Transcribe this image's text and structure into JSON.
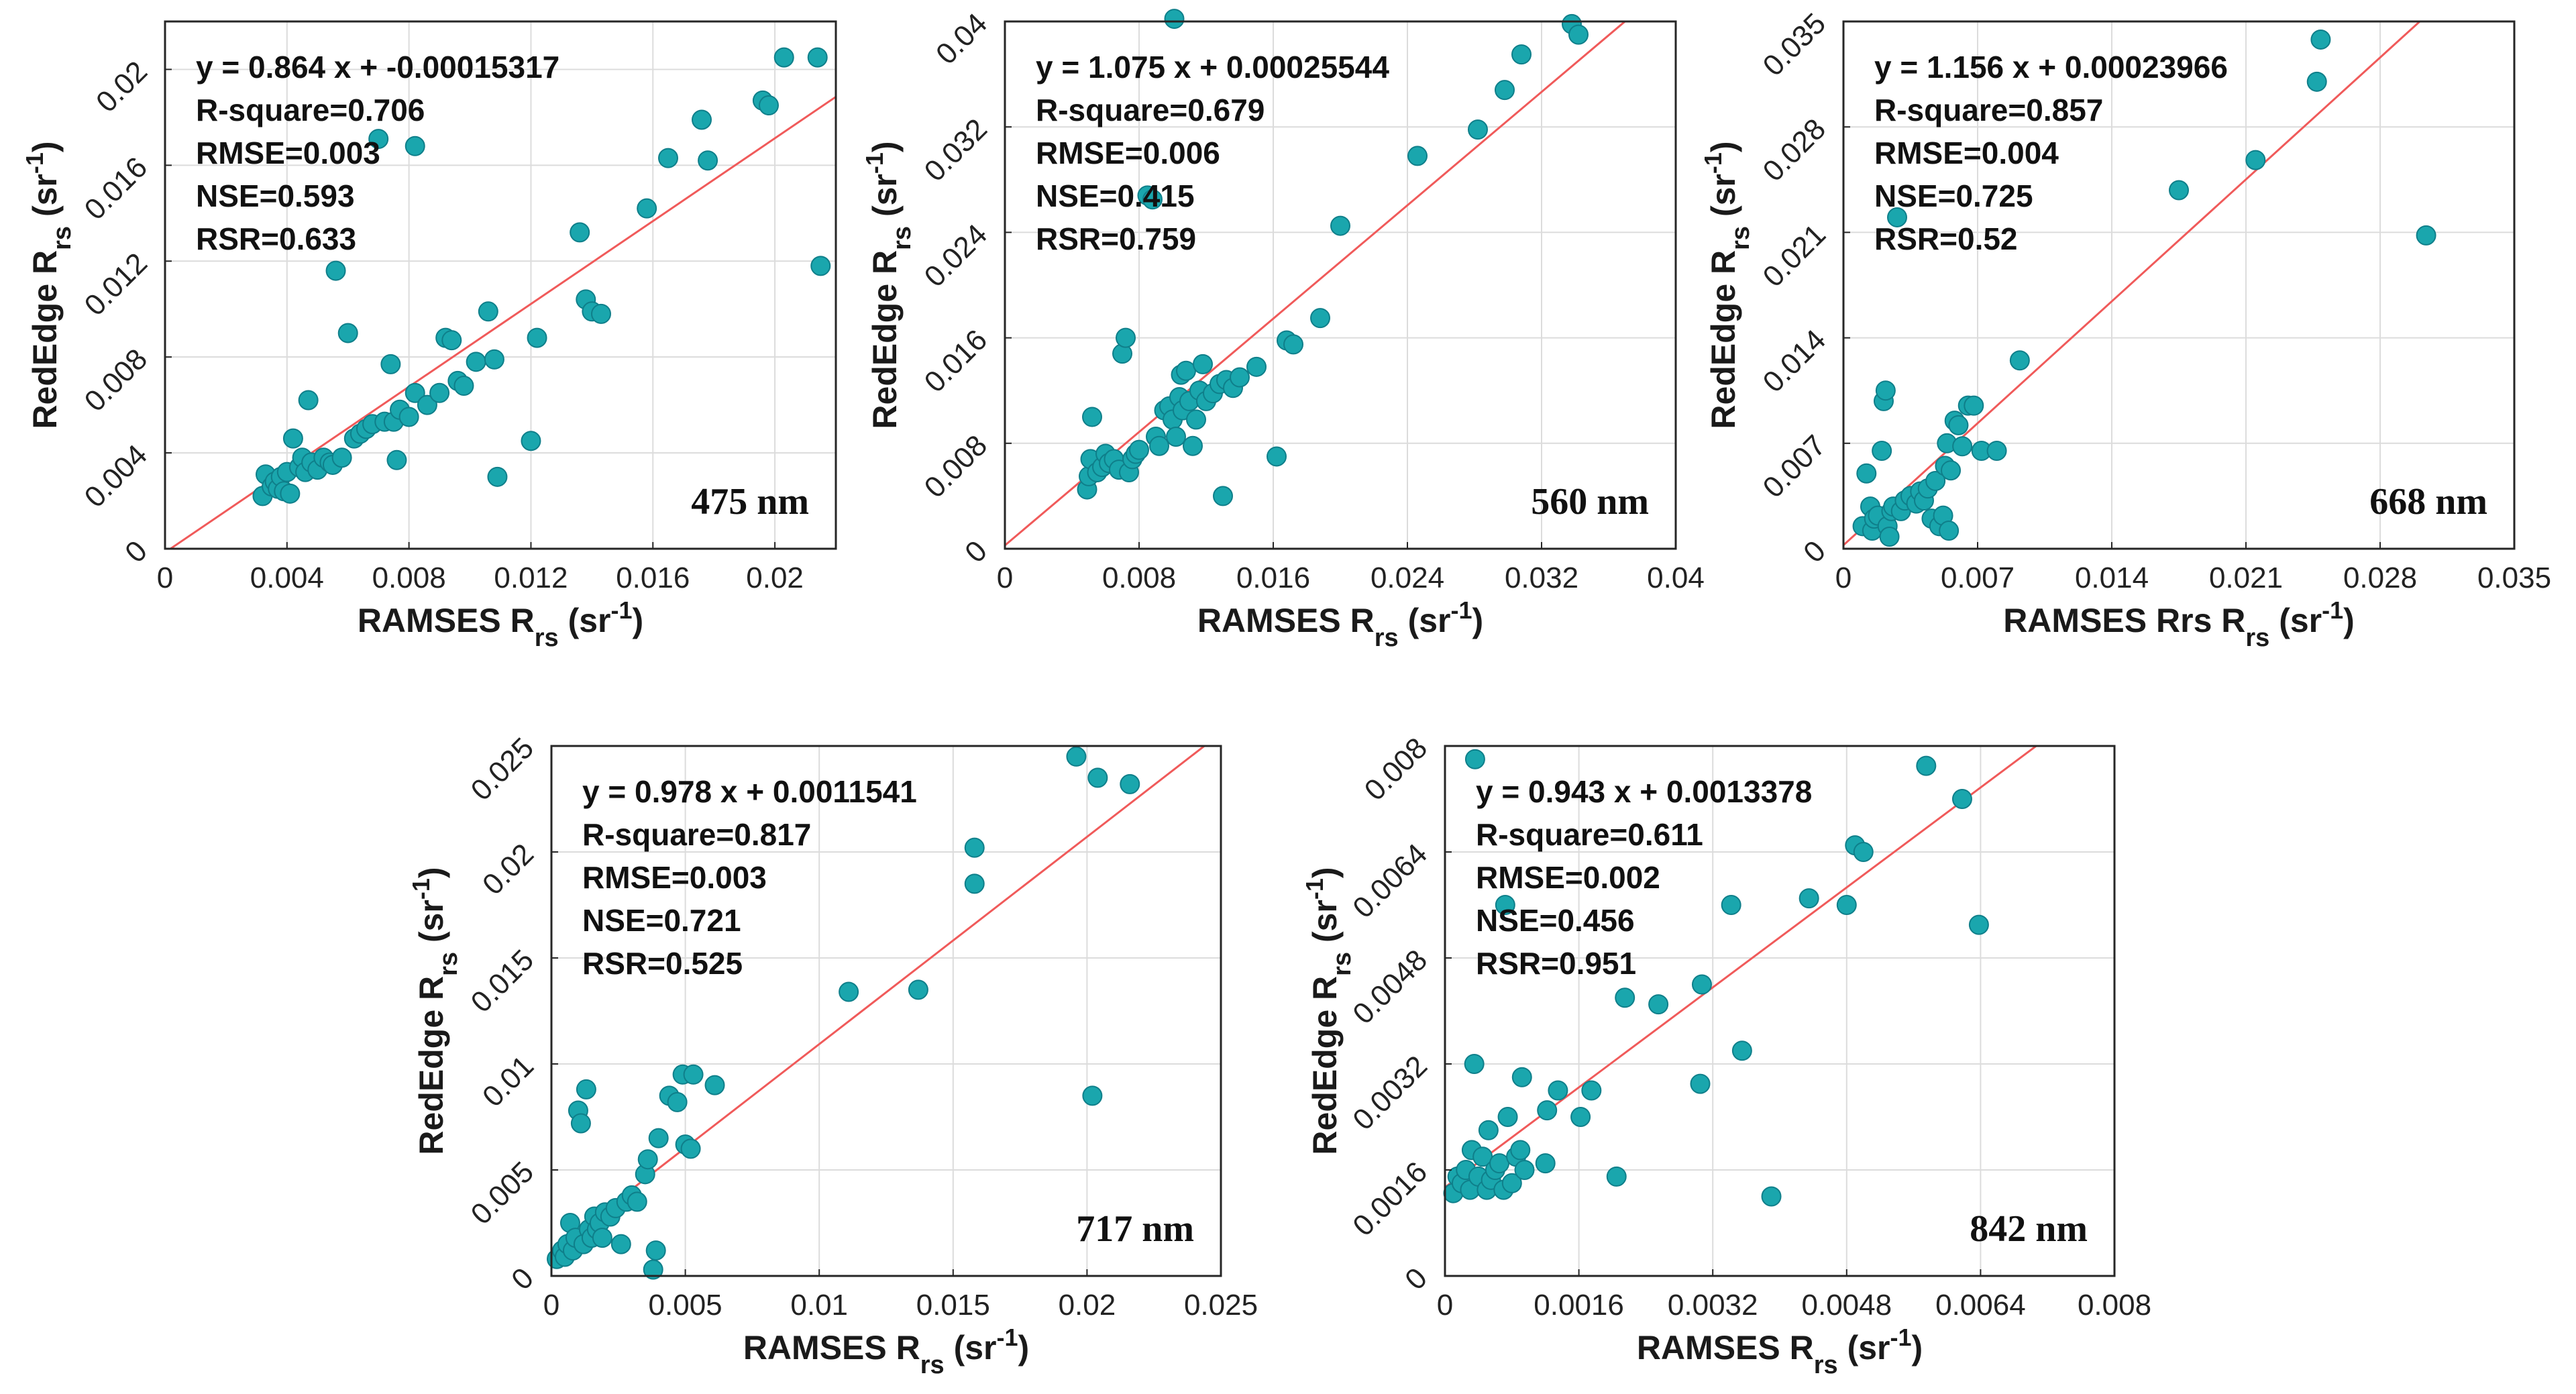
{
  "chart_data": [
    {
      "type": "scatter",
      "id": "475",
      "wavelength_label": "475 nm",
      "xlabel": "RAMSES R",
      "xlabel_sub": "rs",
      "ylabel": "RedEdge R",
      "ylabel_sub": "rs",
      "unit_open": " (sr",
      "unit_exp": "-1",
      "unit_close": ")",
      "xlim": [
        0,
        0.022
      ],
      "ylim": [
        0,
        0.022
      ],
      "xticks": [
        0,
        0.004,
        0.008,
        0.012,
        0.016,
        0.02
      ],
      "xtick_labels": [
        "0",
        "0.004",
        "0.008",
        "0.012",
        "0.016",
        "0.02"
      ],
      "yticks": [
        0,
        0.004,
        0.008,
        0.012,
        0.016,
        0.02
      ],
      "ytick_labels": [
        "0",
        "0.004",
        "0.008",
        "0.012",
        "0.016",
        "0.02"
      ],
      "grid": true,
      "fit": {
        "slope": 0.864,
        "intercept": -0.00015317
      },
      "stats": [
        "y = 0.864 x + -0.00015317",
        "R-square=0.706",
        "RMSE=0.003",
        "NSE=0.593",
        "RSR=0.633"
      ],
      "points": [
        [
          0.0032,
          0.0022
        ],
        [
          0.0033,
          0.0031
        ],
        [
          0.0035,
          0.0026
        ],
        [
          0.0036,
          0.0028
        ],
        [
          0.0037,
          0.0025
        ],
        [
          0.0038,
          0.003
        ],
        [
          0.0039,
          0.0024
        ],
        [
          0.004,
          0.0032
        ],
        [
          0.0041,
          0.0023
        ],
        [
          0.0042,
          0.0046
        ],
        [
          0.0044,
          0.0034
        ],
        [
          0.0045,
          0.0038
        ],
        [
          0.0046,
          0.0032
        ],
        [
          0.0047,
          0.0062
        ],
        [
          0.0048,
          0.0036
        ],
        [
          0.005,
          0.0033
        ],
        [
          0.0052,
          0.0038
        ],
        [
          0.0054,
          0.0036
        ],
        [
          0.0055,
          0.0035
        ],
        [
          0.0056,
          0.0116
        ],
        [
          0.0058,
          0.0038
        ],
        [
          0.006,
          0.009
        ],
        [
          0.0062,
          0.0046
        ],
        [
          0.0064,
          0.0048
        ],
        [
          0.0066,
          0.005
        ],
        [
          0.0068,
          0.0052
        ],
        [
          0.007,
          0.0171
        ],
        [
          0.0072,
          0.0053
        ],
        [
          0.0074,
          0.0077
        ],
        [
          0.0075,
          0.0053
        ],
        [
          0.0076,
          0.0037
        ],
        [
          0.0077,
          0.0058
        ],
        [
          0.008,
          0.0055
        ],
        [
          0.0082,
          0.0168
        ],
        [
          0.0082,
          0.0065
        ],
        [
          0.0086,
          0.006
        ],
        [
          0.009,
          0.0065
        ],
        [
          0.0092,
          0.0088
        ],
        [
          0.0094,
          0.0087
        ],
        [
          0.0096,
          0.007
        ],
        [
          0.0098,
          0.0068
        ],
        [
          0.0102,
          0.0078
        ],
        [
          0.0106,
          0.0099
        ],
        [
          0.0108,
          0.0079
        ],
        [
          0.0109,
          0.003
        ],
        [
          0.012,
          0.0045
        ],
        [
          0.0122,
          0.0088
        ],
        [
          0.0136,
          0.0132
        ],
        [
          0.0138,
          0.0104
        ],
        [
          0.014,
          0.0099
        ],
        [
          0.0143,
          0.0098
        ],
        [
          0.0158,
          0.0142
        ],
        [
          0.0165,
          0.0163
        ],
        [
          0.0176,
          0.0179
        ],
        [
          0.0178,
          0.0162
        ],
        [
          0.0196,
          0.0187
        ],
        [
          0.0198,
          0.0185
        ],
        [
          0.0203,
          0.0205
        ],
        [
          0.0214,
          0.0205
        ],
        [
          0.0215,
          0.0118
        ]
      ]
    },
    {
      "type": "scatter",
      "id": "560",
      "wavelength_label": "560 nm",
      "xlabel": "RAMSES R",
      "xlabel_sub": "rs",
      "ylabel": "RedEdge R",
      "ylabel_sub": "rs",
      "unit_open": " (sr",
      "unit_exp": "-1",
      "unit_close": ")",
      "xlim": [
        0,
        0.04
      ],
      "ylim": [
        0,
        0.04
      ],
      "xticks": [
        0,
        0.008,
        0.016,
        0.024,
        0.032,
        0.04
      ],
      "xtick_labels": [
        "0",
        "0.008",
        "0.016",
        "0.024",
        "0.032",
        "0.04"
      ],
      "yticks": [
        0,
        0.008,
        0.016,
        0.024,
        0.032,
        0.04
      ],
      "ytick_labels": [
        "0",
        "0.008",
        "0.016",
        "0.024",
        "0.032",
        "0.04"
      ],
      "grid": true,
      "fit": {
        "slope": 1.075,
        "intercept": 0.00025544
      },
      "stats": [
        "y = 1.075 x + 0.00025544",
        "R-square=0.679",
        "RMSE=0.006",
        "NSE=0.415",
        "RSR=0.759"
      ],
      "points": [
        [
          0.0049,
          0.0045
        ],
        [
          0.005,
          0.0055
        ],
        [
          0.0051,
          0.0068
        ],
        [
          0.0052,
          0.01
        ],
        [
          0.0055,
          0.0058
        ],
        [
          0.0058,
          0.0062
        ],
        [
          0.006,
          0.0072
        ],
        [
          0.0062,
          0.0065
        ],
        [
          0.0065,
          0.0068
        ],
        [
          0.0068,
          0.006
        ],
        [
          0.007,
          0.0148
        ],
        [
          0.0072,
          0.016
        ],
        [
          0.0074,
          0.0058
        ],
        [
          0.0076,
          0.0068
        ],
        [
          0.0078,
          0.0072
        ],
        [
          0.008,
          0.0075
        ],
        [
          0.0085,
          0.0268
        ],
        [
          0.0088,
          0.0265
        ],
        [
          0.009,
          0.0085
        ],
        [
          0.0092,
          0.0078
        ],
        [
          0.0095,
          0.0105
        ],
        [
          0.0098,
          0.0108
        ],
        [
          0.01,
          0.0098
        ],
        [
          0.0101,
          0.0402
        ],
        [
          0.0102,
          0.0085
        ],
        [
          0.0104,
          0.0115
        ],
        [
          0.0105,
          0.0132
        ],
        [
          0.0106,
          0.0105
        ],
        [
          0.0108,
          0.0135
        ],
        [
          0.011,
          0.0112
        ],
        [
          0.0112,
          0.0078
        ],
        [
          0.0114,
          0.0098
        ],
        [
          0.0116,
          0.012
        ],
        [
          0.0118,
          0.014
        ],
        [
          0.012,
          0.0112
        ],
        [
          0.0124,
          0.0118
        ],
        [
          0.0128,
          0.0125
        ],
        [
          0.013,
          0.004
        ],
        [
          0.0132,
          0.0128
        ],
        [
          0.0136,
          0.0122
        ],
        [
          0.014,
          0.013
        ],
        [
          0.015,
          0.0138
        ],
        [
          0.0162,
          0.007
        ],
        [
          0.0168,
          0.0158
        ],
        [
          0.0172,
          0.0155
        ],
        [
          0.0188,
          0.0175
        ],
        [
          0.02,
          0.0245
        ],
        [
          0.0246,
          0.0298
        ],
        [
          0.0282,
          0.0318
        ],
        [
          0.0298,
          0.0348
        ],
        [
          0.0308,
          0.0375
        ],
        [
          0.0338,
          0.0398
        ],
        [
          0.0342,
          0.039
        ]
      ]
    },
    {
      "type": "scatter",
      "id": "668",
      "wavelength_label": "668 nm",
      "xlabel": "RAMSES Rrs R",
      "xlabel_sub": "rs",
      "ylabel": "RedEdge R",
      "ylabel_sub": "rs",
      "unit_open": " (sr",
      "unit_exp": "-1",
      "unit_close": ")",
      "xlim": [
        0,
        0.035
      ],
      "ylim": [
        0,
        0.035
      ],
      "xticks": [
        0,
        0.007,
        0.014,
        0.021,
        0.028,
        0.035
      ],
      "xtick_labels": [
        "0",
        "0.007",
        "0.014",
        "0.021",
        "0.028",
        "0.035"
      ],
      "yticks": [
        0,
        0.007,
        0.014,
        0.021,
        0.028,
        0.035
      ],
      "ytick_labels": [
        "0",
        "0.007",
        "0.014",
        "0.021",
        "0.028",
        "0.035"
      ],
      "grid": true,
      "fit": {
        "slope": 1.156,
        "intercept": 0.00023966
      },
      "stats": [
        "y = 1.156 x + 0.00023966",
        "R-square=0.857",
        "RMSE=0.004",
        "NSE=0.725",
        "RSR=0.52"
      ],
      "points": [
        [
          0.001,
          0.0015
        ],
        [
          0.0012,
          0.005
        ],
        [
          0.0014,
          0.0028
        ],
        [
          0.0015,
          0.0012
        ],
        [
          0.0016,
          0.002
        ],
        [
          0.0018,
          0.0022
        ],
        [
          0.002,
          0.0065
        ],
        [
          0.0021,
          0.0098
        ],
        [
          0.0022,
          0.0105
        ],
        [
          0.0023,
          0.0015
        ],
        [
          0.0024,
          0.0008
        ],
        [
          0.0025,
          0.0025
        ],
        [
          0.0026,
          0.0028
        ],
        [
          0.0028,
          0.022
        ],
        [
          0.003,
          0.0025
        ],
        [
          0.0032,
          0.0032
        ],
        [
          0.0035,
          0.0035
        ],
        [
          0.0038,
          0.003
        ],
        [
          0.004,
          0.0038
        ],
        [
          0.0042,
          0.0032
        ],
        [
          0.0044,
          0.004
        ],
        [
          0.0046,
          0.002
        ],
        [
          0.0048,
          0.0045
        ],
        [
          0.005,
          0.0015
        ],
        [
          0.0052,
          0.0022
        ],
        [
          0.0053,
          0.0055
        ],
        [
          0.0054,
          0.007
        ],
        [
          0.0055,
          0.0012
        ],
        [
          0.0056,
          0.0052
        ],
        [
          0.0058,
          0.0085
        ],
        [
          0.006,
          0.0082
        ],
        [
          0.0062,
          0.0068
        ],
        [
          0.0065,
          0.0095
        ],
        [
          0.0068,
          0.0095
        ],
        [
          0.0072,
          0.0065
        ],
        [
          0.008,
          0.0065
        ],
        [
          0.0092,
          0.0125
        ],
        [
          0.0175,
          0.0238
        ],
        [
          0.0215,
          0.0258
        ],
        [
          0.0247,
          0.031
        ],
        [
          0.0249,
          0.0338
        ],
        [
          0.0304,
          0.0208
        ]
      ]
    },
    {
      "type": "scatter",
      "id": "717",
      "wavelength_label": "717 nm",
      "xlabel": "RAMSES R",
      "xlabel_sub": "rs",
      "ylabel": "RedEdge R",
      "ylabel_sub": "rs",
      "unit_open": " (sr",
      "unit_exp": "-1",
      "unit_close": ")",
      "xlim": [
        0,
        0.025
      ],
      "ylim": [
        0,
        0.025
      ],
      "xticks": [
        0,
        0.005,
        0.01,
        0.015,
        0.02,
        0.025
      ],
      "xtick_labels": [
        "0",
        "0.005",
        "0.01",
        "0.015",
        "0.02",
        "0.025"
      ],
      "yticks": [
        0,
        0.005,
        0.01,
        0.015,
        0.02,
        0.025
      ],
      "ytick_labels": [
        "0",
        "0.005",
        "0.01",
        "0.015",
        "0.02",
        "0.025"
      ],
      "grid": true,
      "fit": {
        "slope": 0.978,
        "intercept": 0.0011541
      },
      "stats": [
        "y = 0.978 x + 0.0011541",
        "R-square=0.817",
        "RMSE=0.003",
        "NSE=0.721",
        "RSR=0.525"
      ],
      "points": [
        [
          0.0002,
          0.0008
        ],
        [
          0.0004,
          0.0012
        ],
        [
          0.0005,
          0.0009
        ],
        [
          0.0006,
          0.0015
        ],
        [
          0.0007,
          0.0025
        ],
        [
          0.0008,
          0.0012
        ],
        [
          0.0009,
          0.0018
        ],
        [
          0.001,
          0.0078
        ],
        [
          0.0011,
          0.0072
        ],
        [
          0.0012,
          0.0015
        ],
        [
          0.0013,
          0.0088
        ],
        [
          0.0014,
          0.0022
        ],
        [
          0.0015,
          0.0018
        ],
        [
          0.0016,
          0.0028
        ],
        [
          0.0017,
          0.0022
        ],
        [
          0.0018,
          0.0025
        ],
        [
          0.0019,
          0.0018
        ],
        [
          0.002,
          0.003
        ],
        [
          0.0022,
          0.0028
        ],
        [
          0.0024,
          0.0032
        ],
        [
          0.0026,
          0.0015
        ],
        [
          0.0028,
          0.0035
        ],
        [
          0.003,
          0.0038
        ],
        [
          0.0032,
          0.0035
        ],
        [
          0.0035,
          0.0048
        ],
        [
          0.0036,
          0.0055
        ],
        [
          0.0038,
          0.0003
        ],
        [
          0.0039,
          0.0012
        ],
        [
          0.004,
          0.0065
        ],
        [
          0.0044,
          0.0085
        ],
        [
          0.0047,
          0.0082
        ],
        [
          0.0049,
          0.0095
        ],
        [
          0.005,
          0.0062
        ],
        [
          0.0052,
          0.006
        ],
        [
          0.0053,
          0.0095
        ],
        [
          0.0061,
          0.009
        ],
        [
          0.0111,
          0.0134
        ],
        [
          0.0137,
          0.0135
        ],
        [
          0.0158,
          0.0185
        ],
        [
          0.0158,
          0.0202
        ],
        [
          0.0196,
          0.0245
        ],
        [
          0.0202,
          0.0085
        ],
        [
          0.0204,
          0.0235
        ],
        [
          0.0216,
          0.0232
        ]
      ]
    },
    {
      "type": "scatter",
      "id": "842",
      "wavelength_label": "842 nm",
      "xlabel": "RAMSES R",
      "xlabel_sub": "rs",
      "ylabel": "RedEdge R",
      "ylabel_sub": "rs",
      "unit_open": " (sr",
      "unit_exp": "-1",
      "unit_close": ")",
      "xlim": [
        0,
        0.008
      ],
      "ylim": [
        0,
        0.008
      ],
      "xticks": [
        0,
        0.0016,
        0.0032,
        0.0048,
        0.0064,
        0.008
      ],
      "xtick_labels": [
        "0",
        "0.0016",
        "0.0032",
        "0.0048",
        "0.0064",
        "0.008"
      ],
      "yticks": [
        0,
        0.0016,
        0.0032,
        0.0048,
        0.0064,
        0.008
      ],
      "ytick_labels": [
        "0",
        "0.0016",
        "0.0032",
        "0.0048",
        "0.0064",
        "0.008"
      ],
      "grid": true,
      "fit": {
        "slope": 0.943,
        "intercept": 0.0013378
      },
      "stats": [
        "y = 0.943 x + 0.0013378",
        "R-square=0.611",
        "RMSE=0.002",
        "NSE=0.456",
        "RSR=0.951"
      ],
      "points": [
        [
          0.0001,
          0.00125
        ],
        [
          0.00015,
          0.0015
        ],
        [
          0.0002,
          0.0014
        ],
        [
          0.00025,
          0.0016
        ],
        [
          0.0003,
          0.0013
        ],
        [
          0.00032,
          0.0019
        ],
        [
          0.00035,
          0.0032
        ],
        [
          0.00036,
          0.0078
        ],
        [
          0.0004,
          0.0015
        ],
        [
          0.00045,
          0.0018
        ],
        [
          0.0005,
          0.0013
        ],
        [
          0.00052,
          0.0022
        ],
        [
          0.00055,
          0.00145
        ],
        [
          0.0006,
          0.0016
        ],
        [
          0.00065,
          0.0017
        ],
        [
          0.0007,
          0.0013
        ],
        [
          0.00072,
          0.0056
        ],
        [
          0.00075,
          0.0024
        ],
        [
          0.0008,
          0.0014
        ],
        [
          0.00085,
          0.0018
        ],
        [
          0.0009,
          0.0019
        ],
        [
          0.00092,
          0.003
        ],
        [
          0.00095,
          0.0016
        ],
        [
          0.0012,
          0.0017
        ],
        [
          0.00122,
          0.0025
        ],
        [
          0.00135,
          0.0028
        ],
        [
          0.00162,
          0.0024
        ],
        [
          0.00175,
          0.0028
        ],
        [
          0.00205,
          0.0015
        ],
        [
          0.00215,
          0.0042
        ],
        [
          0.00255,
          0.0041
        ],
        [
          0.00305,
          0.0029
        ],
        [
          0.00307,
          0.0044
        ],
        [
          0.00342,
          0.0056
        ],
        [
          0.00355,
          0.0034
        ],
        [
          0.0039,
          0.0012
        ],
        [
          0.00435,
          0.0057
        ],
        [
          0.0048,
          0.0056
        ],
        [
          0.0049,
          0.0065
        ],
        [
          0.005,
          0.0064
        ],
        [
          0.00575,
          0.0077
        ],
        [
          0.00618,
          0.0072
        ],
        [
          0.00638,
          0.0053
        ]
      ]
    }
  ]
}
